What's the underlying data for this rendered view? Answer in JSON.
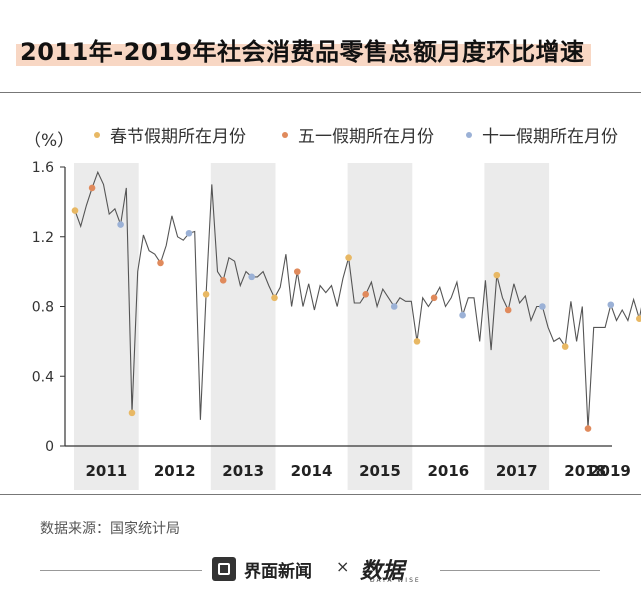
{
  "title": "2011年-2019年社会消费品零售总额月度环比增速",
  "unit_label": "（%）",
  "source": "数据来源：国家统计局",
  "footer": {
    "brand": "界面新闻",
    "times": "×",
    "watermark": "数据",
    "watermark_sub": "DATA WISE"
  },
  "colors": {
    "line": "#555555",
    "spring": "#e8b864",
    "mayday": "#e08a5c",
    "national": "#9bb1d6",
    "band": "#ebebeb",
    "title_accent": "#f8d7c4"
  },
  "chart_data": {
    "type": "line",
    "title": "2011年-2019年社会消费品零售总额月度环比增速",
    "ylabel": "（%）",
    "ylim": [
      0,
      1.6
    ],
    "yticks": [
      "0",
      "0.4",
      "0.8",
      "1.2",
      "1.6"
    ],
    "years": [
      "2011",
      "2012",
      "2013",
      "2014",
      "2015",
      "2016",
      "2017",
      "2018",
      "2019"
    ],
    "legend": [
      {
        "key": "spring",
        "label": "春节假期所在月份"
      },
      {
        "key": "mayday",
        "label": "五一假期所在月份"
      },
      {
        "key": "national",
        "label": "十一假期所在月份"
      }
    ],
    "start": "2011-01",
    "values": [
      1.35,
      1.26,
      1.38,
      1.48,
      1.57,
      1.5,
      1.33,
      1.36,
      1.27,
      1.48,
      0.19,
      1.0,
      1.21,
      1.12,
      1.1,
      1.05,
      1.15,
      1.32,
      1.2,
      1.18,
      1.22,
      1.23,
      0.15,
      0.87,
      1.5,
      1.0,
      0.95,
      1.08,
      1.06,
      0.92,
      1.0,
      0.97,
      0.97,
      1.0,
      0.92,
      0.85,
      0.91,
      1.1,
      0.8,
      1.0,
      0.8,
      0.93,
      0.78,
      0.92,
      0.88,
      0.92,
      0.8,
      0.96,
      1.08,
      0.82,
      0.82,
      0.87,
      0.94,
      0.8,
      0.9,
      0.85,
      0.8,
      0.85,
      0.83,
      0.83,
      0.6,
      0.85,
      0.8,
      0.85,
      0.91,
      0.8,
      0.85,
      0.94,
      0.75,
      0.85,
      0.85,
      0.6,
      0.95,
      0.55,
      0.98,
      0.85,
      0.78,
      0.93,
      0.82,
      0.86,
      0.72,
      0.8,
      0.8,
      0.68,
      0.6,
      0.62,
      0.57,
      0.83,
      0.6,
      0.8,
      0.1,
      0.68,
      0.68,
      0.68,
      0.81,
      0.72,
      0.78,
      0.72,
      0.84,
      0.73,
      0.9
    ],
    "markers": [
      {
        "date": "2011-01",
        "type": "spring"
      },
      {
        "date": "2011-04",
        "type": "mayday"
      },
      {
        "date": "2011-09",
        "type": "national"
      },
      {
        "date": "2011-11",
        "type": "spring"
      },
      {
        "date": "2012-04",
        "type": "mayday"
      },
      {
        "date": "2012-09",
        "type": "national"
      },
      {
        "date": "2012-12",
        "type": "spring"
      },
      {
        "date": "2013-03",
        "type": "mayday"
      },
      {
        "date": "2013-08",
        "type": "national"
      },
      {
        "date": "2013-12",
        "type": "spring"
      },
      {
        "date": "2014-04",
        "type": "mayday"
      },
      {
        "date": "2015-01",
        "type": "spring"
      },
      {
        "date": "2015-04",
        "type": "mayday"
      },
      {
        "date": "2015-09",
        "type": "national"
      },
      {
        "date": "2016-01",
        "type": "spring"
      },
      {
        "date": "2016-04",
        "type": "mayday"
      },
      {
        "date": "2016-09",
        "type": "national"
      },
      {
        "date": "2017-03",
        "type": "spring"
      },
      {
        "date": "2017-05",
        "type": "mayday"
      },
      {
        "date": "2017-11",
        "type": "national"
      },
      {
        "date": "2018-03",
        "type": "spring"
      },
      {
        "date": "2018-07",
        "type": "mayday"
      },
      {
        "date": "2018-11",
        "type": "national"
      },
      {
        "date": "2019-04",
        "type": "spring"
      }
    ]
  }
}
